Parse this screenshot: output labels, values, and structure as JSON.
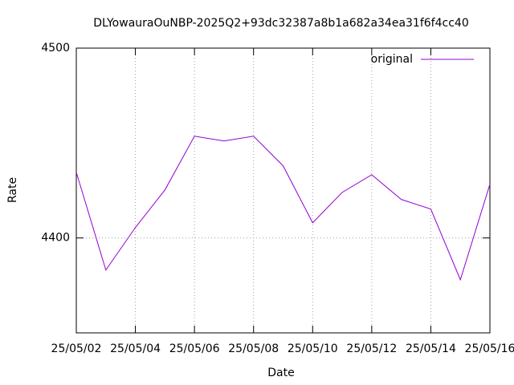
{
  "chart_data": {
    "type": "line",
    "title": "DLYowauraOuNBP-2025Q2+93dc32387a8b1a682a34ea31f6f4cc40",
    "x_label": "Date",
    "y_label": "Rate",
    "x": [
      "25/05/02",
      null,
      "25/05/04",
      null,
      "25/05/06",
      null,
      "25/05/08",
      null,
      "25/05/10",
      null,
      "25/05/12",
      null,
      "25/05/14",
      null,
      "25/05/16"
    ],
    "series": [
      {
        "name": "original",
        "color": "#9400d3",
        "values": [
          4434.6,
          4383.1,
          4405.5,
          4425.3,
          4453.6,
          4451.1,
          4453.6,
          4438,
          4408,
          4424,
          4433.3,
          4420.3,
          4415.2,
          4378,
          4428.3
        ]
      }
    ],
    "ylim": [
      4350,
      4500
    ],
    "yticks": [
      4400,
      4500
    ],
    "grid": true,
    "legend": "top-right"
  }
}
